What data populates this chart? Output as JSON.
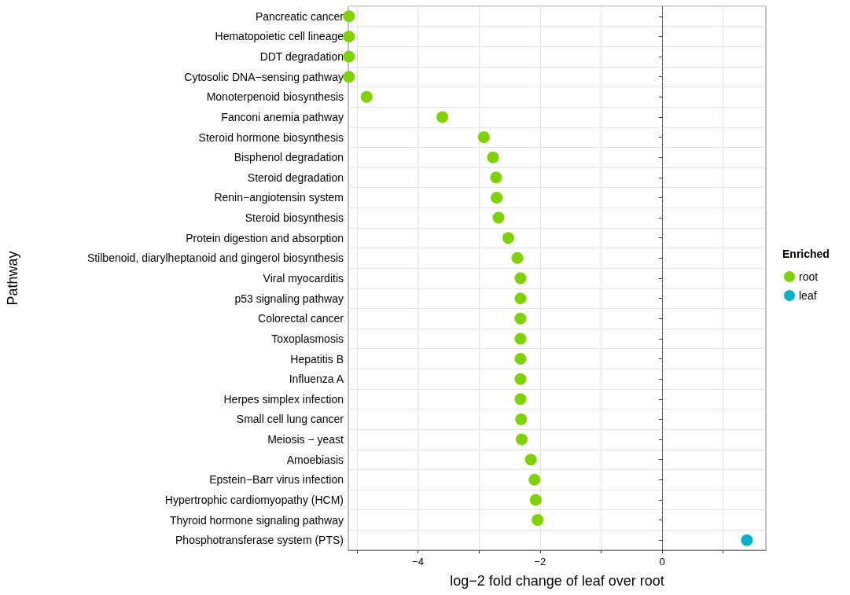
{
  "chart_data": {
    "type": "scatter",
    "orientation": "horizontal",
    "ylabel": "Pathway",
    "xlabel": "log−2 fold change of leaf over root",
    "legend_title": "Enriched",
    "categories": [
      "Pancreatic cancer",
      "Hematopoietic cell lineage",
      "DDT degradation",
      "Cytosolic DNA−sensing pathway",
      "Monoterpenoid biosynthesis",
      "Fanconi anemia pathway",
      "Steroid hormone biosynthesis",
      "Bisphenol degradation",
      "Steroid degradation",
      "Renin−angiotensin system",
      "Steroid biosynthesis",
      "Protein digestion and absorption",
      "Stilbenoid, diarylheptanoid and gingerol biosynthesis",
      "Viral myocarditis",
      "p53 signaling pathway",
      "Colorectal cancer",
      "Toxoplasmosis",
      "Hepatitis B",
      "Influenza A",
      "Herpes simplex infection",
      "Small cell lung cancer",
      "Meiosis − yeast",
      "Amoebiasis",
      "Epstein−Barr virus infection",
      "Hypertrophic cardiomyopathy (HCM)",
      "Thyroid hormone signaling pathway",
      "Phosphotransferase system (PTS)"
    ],
    "series": [
      {
        "name": "root",
        "color": "#7fd100",
        "values": [
          -5.13,
          -5.13,
          -5.13,
          -5.13,
          -4.84,
          -3.6,
          -2.92,
          -2.77,
          -2.72,
          -2.71,
          -2.68,
          -2.52,
          -2.37,
          -2.32,
          -2.32,
          -2.32,
          -2.32,
          -2.32,
          -2.32,
          -2.32,
          -2.31,
          -2.3,
          -2.15,
          -2.09,
          -2.07,
          -2.04,
          null
        ]
      },
      {
        "name": "leaf",
        "color": "#00b2c4",
        "values": [
          null,
          null,
          null,
          null,
          null,
          null,
          null,
          null,
          null,
          null,
          null,
          null,
          null,
          null,
          null,
          null,
          null,
          null,
          null,
          null,
          null,
          null,
          null,
          null,
          null,
          null,
          1.39
        ]
      }
    ],
    "xlim": [
      -5.14,
      1.7
    ],
    "xticks": [
      {
        "value": -5,
        "label": null
      },
      -4,
      {
        "value": -3,
        "label": null
      },
      -2,
      {
        "value": -1,
        "label": null
      },
      0,
      {
        "value": 1,
        "label": null
      }
    ],
    "ref_lines": [
      {
        "axis": "x",
        "value": 0,
        "line_style": "dashed",
        "color": "#555555"
      }
    ],
    "grid": true,
    "legend": "right",
    "marker": "circle"
  }
}
